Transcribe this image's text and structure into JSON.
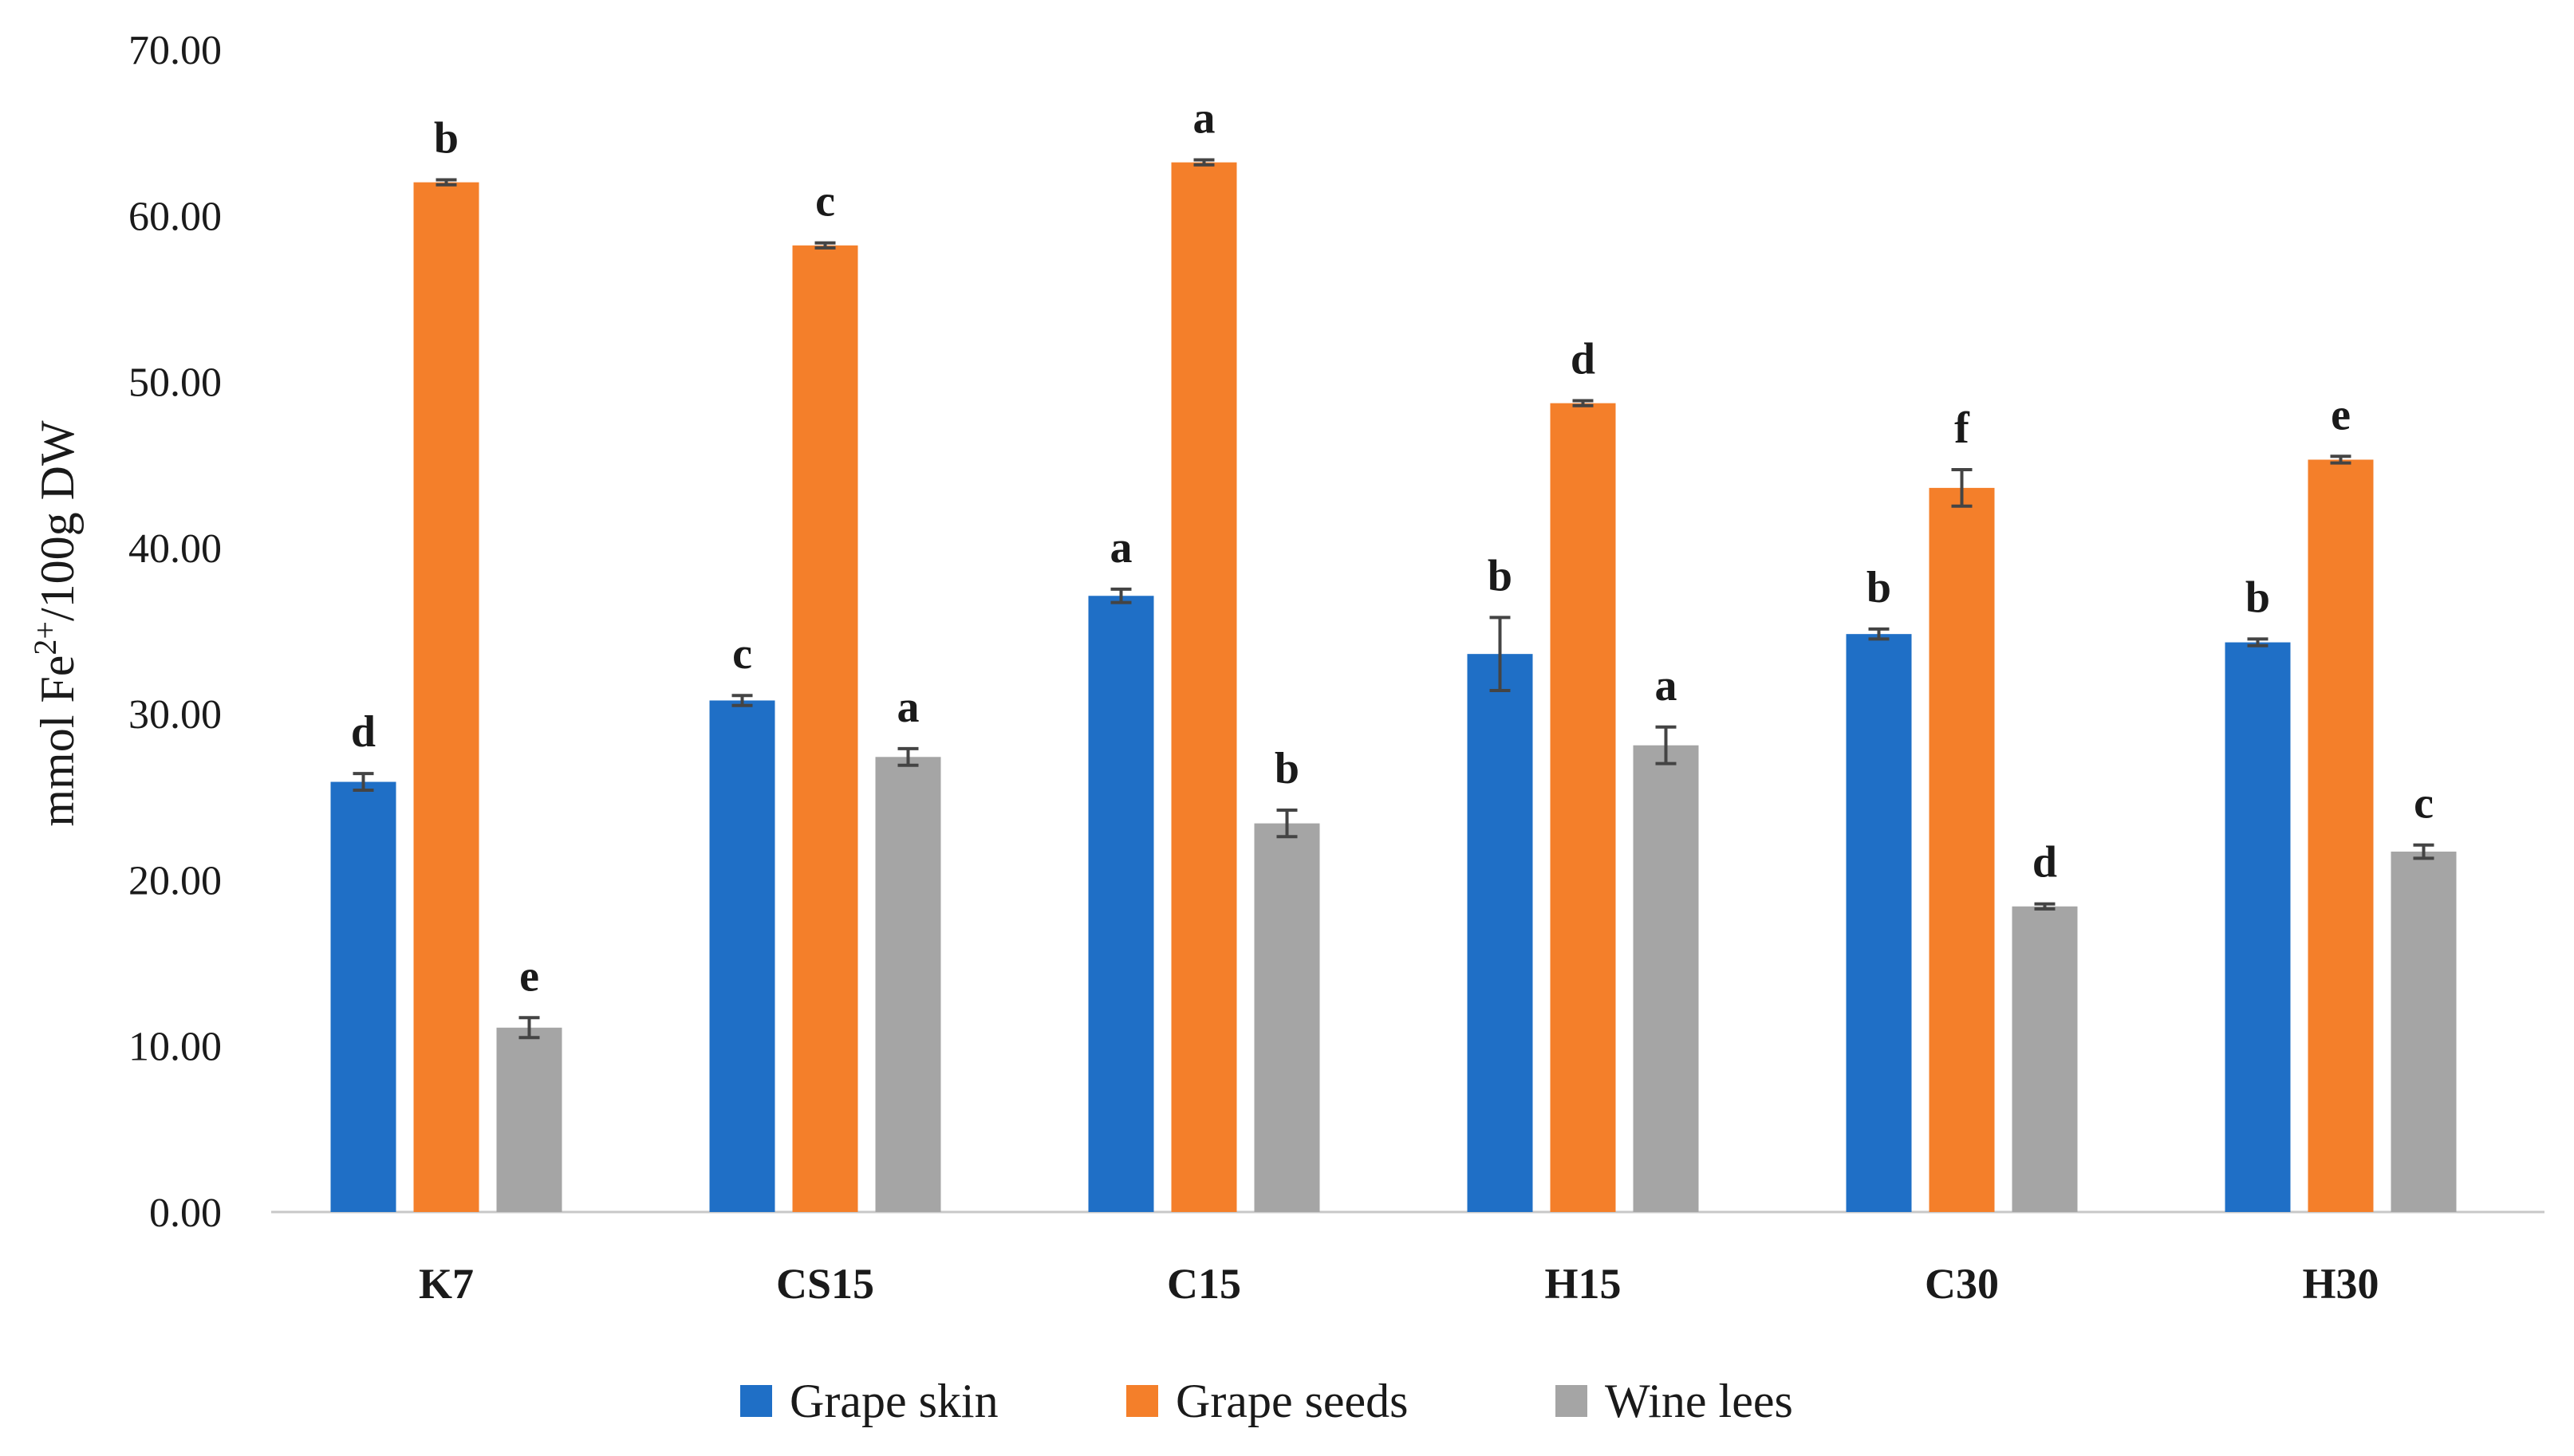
{
  "chart_data": {
    "type": "bar",
    "title": "",
    "xlabel": "",
    "ylabel": {
      "prefix": "mmol Fe",
      "superscript": "2+",
      "suffix": "/100g DW"
    },
    "ylim": [
      0,
      70
    ],
    "yticks": [
      "0.00",
      "10.00",
      "20.00",
      "30.00",
      "40.00",
      "50.00",
      "60.00",
      "70.00"
    ],
    "ytick_values": [
      0,
      10,
      20,
      30,
      40,
      50,
      60,
      70
    ],
    "grid": false,
    "legend_position": "bottom-center",
    "categories": [
      "K7",
      "CS15",
      "C15",
      "H15",
      "C30",
      "H30"
    ],
    "series": [
      {
        "name": "Grape skin",
        "color": "#1F6FC6",
        "values": [
          25.9,
          30.8,
          37.1,
          33.6,
          34.8,
          34.3
        ],
        "errors": [
          0.5,
          0.3,
          0.4,
          2.2,
          0.3,
          0.2
        ],
        "letters": [
          "d",
          "c",
          "a",
          "b",
          "b",
          "b"
        ]
      },
      {
        "name": "Grape seeds",
        "color": "#F47F2A",
        "values": [
          62.0,
          58.2,
          63.2,
          48.7,
          43.6,
          45.3
        ],
        "errors": [
          0.15,
          0.15,
          0.15,
          0.15,
          1.1,
          0.2
        ],
        "letters": [
          "b",
          "c",
          "a",
          "d",
          "f",
          "e"
        ]
      },
      {
        "name": "Wine lees",
        "color": "#A5A5A5",
        "values": [
          11.1,
          27.4,
          23.4,
          28.1,
          18.4,
          21.7
        ],
        "errors": [
          0.6,
          0.5,
          0.8,
          1.1,
          0.15,
          0.4
        ],
        "letters": [
          "e",
          "a",
          "b",
          "a",
          "d",
          "c"
        ]
      }
    ]
  }
}
